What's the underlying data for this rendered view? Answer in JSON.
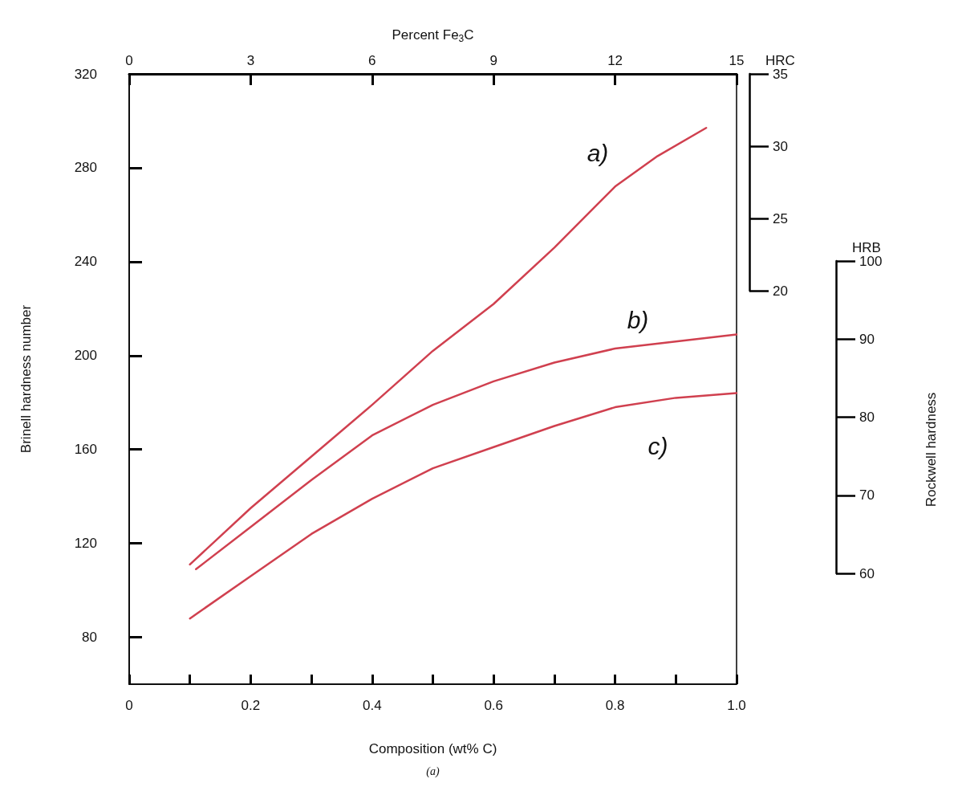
{
  "chart_data": {
    "type": "line",
    "xlabel": "Composition (wt% C)",
    "ylabel": "Brinell hardness number",
    "x2label": "Percent Fe$_{3}$C",
    "y2label": "HRC",
    "y3label": "HRB",
    "xlim": [
      0,
      1.0
    ],
    "xticks": [
      0,
      {
        "value": 0.1,
        "label": null
      },
      0.2,
      {
        "value": 0.3,
        "label": null
      },
      0.4,
      {
        "value": 0.5,
        "label": null
      },
      0.6,
      {
        "value": 0.7,
        "label": null
      },
      0.8,
      {
        "value": 0.9,
        "label": null
      },
      {
        "value": 1.0,
        "label": "1.0"
      }
    ],
    "x2lim": [
      0,
      15
    ],
    "x2ticks": [
      0,
      3,
      6,
      9,
      12,
      15
    ],
    "ylim": [
      60,
      320
    ],
    "yticks": [
      80,
      120,
      160,
      200,
      240,
      280,
      320
    ],
    "y2lim": [
      20,
      35
    ],
    "y2ticks": [
      20,
      25,
      30,
      35
    ],
    "y3lim": [
      60,
      100
    ],
    "y3ticks": [
      60,
      70,
      80,
      90,
      100
    ],
    "grid": false,
    "marker": "none",
    "line_style": "solid",
    "series": [
      {
        "color": "#d0404f",
        "x": [
          0.1,
          0.2,
          0.3,
          0.4,
          0.5,
          0.6,
          0.7,
          0.8,
          0.87,
          0.95
        ],
        "values": [
          111,
          135,
          157,
          179,
          202,
          222,
          246,
          272,
          285,
          297
        ]
      },
      {
        "color": "#d0404f",
        "x": [
          0.11,
          0.2,
          0.3,
          0.4,
          0.5,
          0.6,
          0.7,
          0.8,
          0.9,
          1.0
        ],
        "values": [
          109,
          127,
          147,
          166,
          179,
          189,
          197,
          203,
          206,
          209
        ]
      },
      {
        "color": "#d0404f",
        "x": [
          0.1,
          0.2,
          0.3,
          0.4,
          0.5,
          0.6,
          0.7,
          0.8,
          0.9,
          1.0
        ],
        "values": [
          88,
          106,
          124,
          139,
          152,
          161,
          170,
          178,
          182,
          184
        ]
      }
    ],
    "annotations": [
      "a)",
      "b)",
      "c)",
      "Rockwell hardness",
      "(a)"
    ]
  }
}
